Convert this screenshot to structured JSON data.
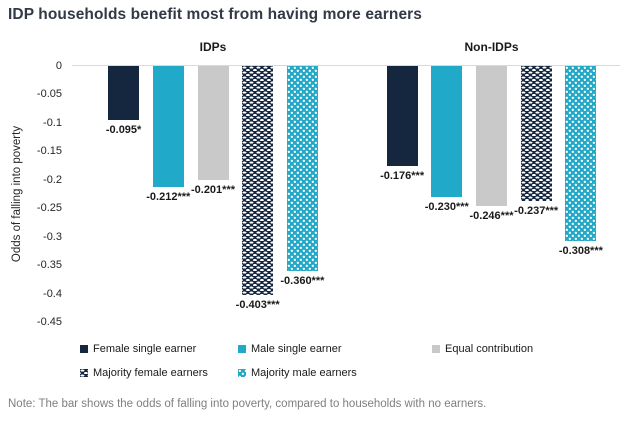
{
  "title": "IDP households benefit most from having more earners",
  "note": "Note: The bar shows the odds of falling into poverty, compared to households with no earners.",
  "colors": {
    "navy": "#14273E",
    "teal": "#21A9C9",
    "gray": "#C9C9C9",
    "axis_line": "#D9D9D9",
    "title_text": "#323A46",
    "note_text": "#7F7F7F"
  },
  "chart_data": {
    "type": "bar",
    "groups": [
      "IDPs",
      "Non-IDPs"
    ],
    "ylabel": "Odds of falling into poverty",
    "ylim": [
      0,
      -0.45
    ],
    "ytick_labels": [
      "0",
      "-0.05",
      "-0.1",
      "-0.15",
      "-0.2",
      "-0.25",
      "-0.3",
      "-0.35",
      "-0.4",
      "-0.45"
    ],
    "ytick_values": [
      0,
      -0.05,
      -0.1,
      -0.15,
      -0.2,
      -0.25,
      -0.3,
      -0.35,
      -0.4,
      -0.45
    ],
    "grid": false,
    "legend_position": "bottom",
    "series": [
      {
        "name": "Female single earner",
        "style": "navy",
        "values": [
          -0.095,
          -0.176
        ],
        "labels": [
          "-0.095*",
          "-0.176***"
        ]
      },
      {
        "name": "Male single earner",
        "style": "teal",
        "values": [
          -0.212,
          -0.23
        ],
        "labels": [
          "-0.212***",
          "-0.230***"
        ]
      },
      {
        "name": "Equal contribution",
        "style": "gray",
        "values": [
          -0.201,
          -0.246
        ],
        "labels": [
          "-0.201***",
          "-0.246***"
        ]
      },
      {
        "name": "Majority female earners",
        "style": "pattern-navy",
        "values": [
          -0.403,
          -0.237
        ],
        "labels": [
          "-0.403***",
          "-0.237***"
        ]
      },
      {
        "name": "Majority male earners",
        "style": "pattern-teal",
        "values": [
          -0.36,
          -0.308
        ],
        "labels": [
          "-0.360***",
          "-0.308***"
        ]
      }
    ]
  }
}
